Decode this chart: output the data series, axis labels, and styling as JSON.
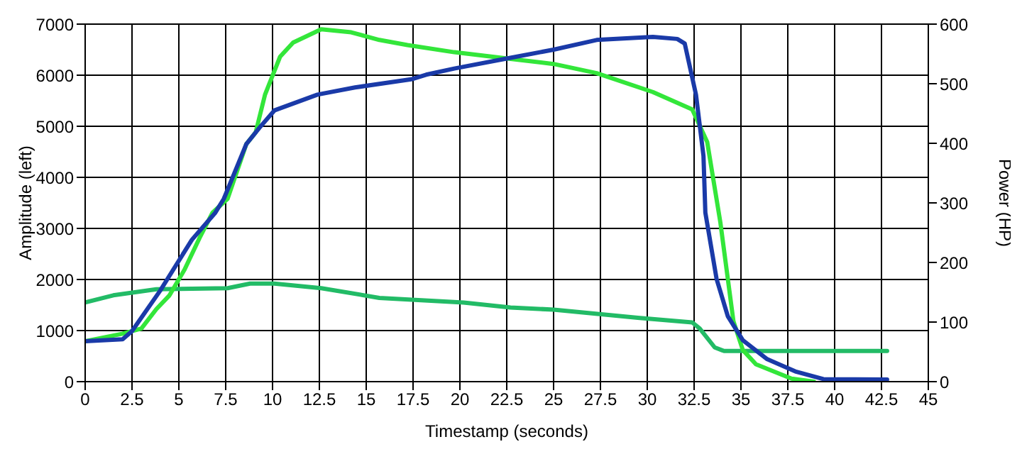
{
  "chart_data": {
    "type": "line",
    "xlabel": "Timestamp (seconds)",
    "ylabel": "Amplitude (left)",
    "y2label": "Power (HP)",
    "xlim": [
      0,
      45
    ],
    "xticks": [
      0,
      2.5,
      5,
      7.5,
      10,
      12.5,
      15,
      17.5,
      20,
      22.5,
      25,
      27.5,
      30,
      32.5,
      35,
      37.5,
      40,
      42.5,
      45
    ],
    "ylim": [
      0,
      7000
    ],
    "yticks": [
      0,
      1000,
      2000,
      3000,
      4000,
      5000,
      6000,
      7000
    ],
    "y2lim": [
      0,
      600
    ],
    "y2ticks": [
      0,
      100,
      200,
      300,
      400,
      500,
      600
    ],
    "grid": true,
    "marker": "none",
    "line_style": "solid",
    "series": [
      {
        "color": "#22bb66",
        "x": [
          0,
          1.5,
          3.8,
          7.6,
          8.8,
          10.1,
          12.6,
          15.7,
          20.2,
          22.7,
          25,
          29.5,
          32.4,
          32.8,
          33.6,
          34.1,
          42.8
        ],
        "values": [
          1550,
          1690,
          1810,
          1830,
          1920,
          1920,
          1830,
          1640,
          1550,
          1450,
          1410,
          1250,
          1160,
          1040,
          670,
          600,
          600
        ]
      },
      {
        "color": "#33e63a",
        "x": [
          0,
          2,
          3,
          3.8,
          4.5,
          5.3,
          6.1,
          6.8,
          7.6,
          8.6,
          9.1,
          9.6,
          10.4,
          11.1,
          12.6,
          14.2,
          15.7,
          17.2,
          19.7,
          22.7,
          25,
          27.3,
          30.3,
          32.4,
          33.2,
          33.9,
          34.6,
          35.1,
          35.8,
          37.7,
          38.9
        ],
        "values": [
          790,
          940,
          1040,
          1420,
          1690,
          2190,
          2810,
          3310,
          3580,
          4650,
          4880,
          5620,
          6360,
          6640,
          6900,
          6840,
          6690,
          6590,
          6450,
          6320,
          6220,
          6040,
          5670,
          5330,
          4690,
          3120,
          1180,
          620,
          340,
          60,
          0
        ]
      },
      {
        "color": "#1a3aa8",
        "x": [
          0,
          2,
          2.5,
          4,
          5.7,
          6.95,
          7.4,
          8.6,
          9.3,
          10.1,
          12.4,
          14.4,
          17.4,
          18.2,
          19.7,
          22.7,
          25,
          27.3,
          30.3,
          31.6,
          32,
          32.6,
          33,
          33.1,
          33.7,
          34.3,
          35.1,
          36.4,
          37.9,
          39.4,
          42.8
        ],
        "values": [
          790,
          830,
          990,
          1780,
          2780,
          3310,
          3580,
          4650,
          4970,
          5310,
          5620,
          5760,
          5920,
          6010,
          6130,
          6340,
          6500,
          6690,
          6750,
          6710,
          6620,
          5620,
          4420,
          3310,
          2010,
          1280,
          810,
          440,
          200,
          50,
          40
        ]
      }
    ]
  }
}
